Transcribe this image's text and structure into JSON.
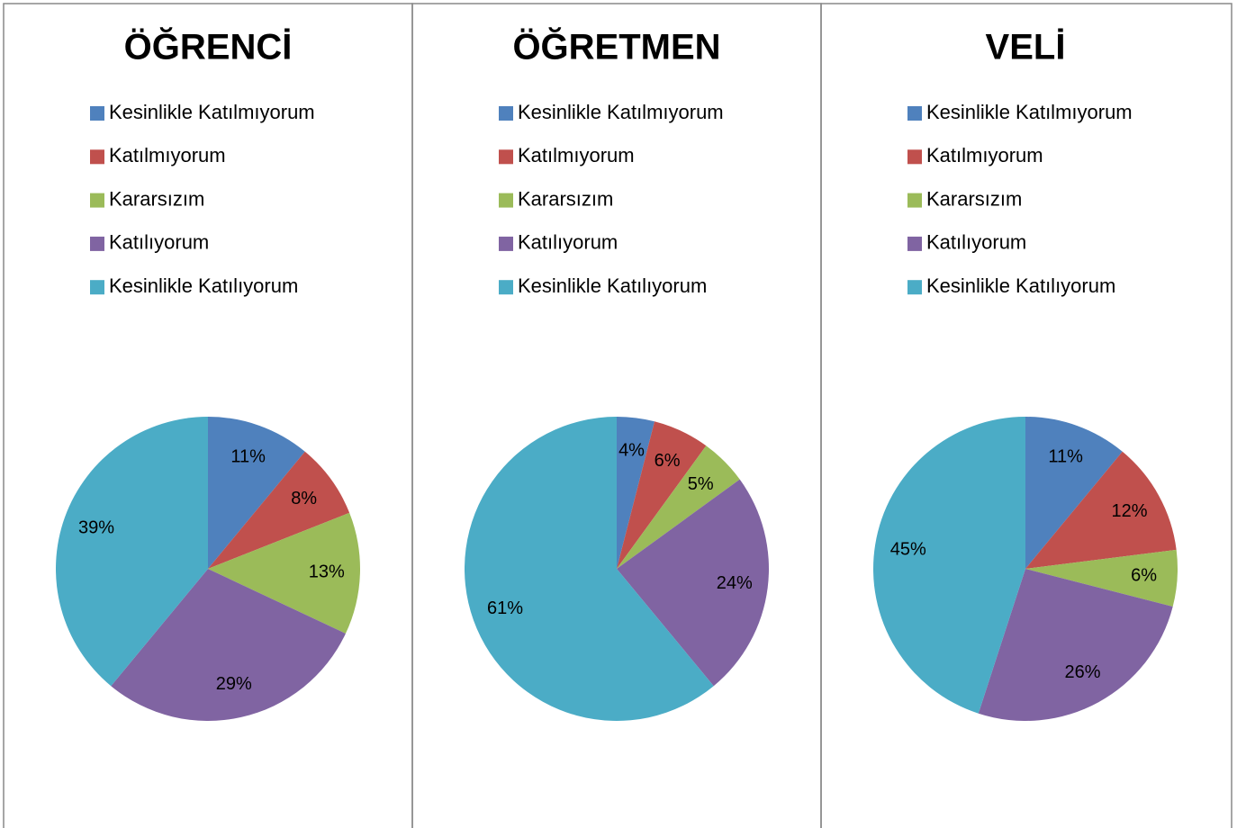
{
  "chart_data": [
    {
      "type": "pie",
      "title": "ÖĞRENCİ",
      "categories": [
        "Kesinlikle Katılmıyorum",
        "Katılmıyorum",
        "Kararsızım",
        "Katılıyorum",
        "Kesinlikle Katılıyorum"
      ],
      "values": [
        11,
        8,
        13,
        29,
        39
      ],
      "value_labels": [
        "11%",
        "8%",
        "13%",
        "29%",
        "39%"
      ],
      "colors": [
        "#4f81bd",
        "#c0504d",
        "#9bbb59",
        "#8064a2",
        "#4bacc6"
      ]
    },
    {
      "type": "pie",
      "title": "ÖĞRETMEN",
      "categories": [
        "Kesinlikle Katılmıyorum",
        "Katılmıyorum",
        "Kararsızım",
        "Katılıyorum",
        "Kesinlikle Katılıyorum"
      ],
      "values": [
        4,
        6,
        5,
        24,
        61
      ],
      "value_labels": [
        "4%",
        "6%",
        "5%",
        "24%",
        "61%"
      ],
      "colors": [
        "#4f81bd",
        "#c0504d",
        "#9bbb59",
        "#8064a2",
        "#4bacc6"
      ]
    },
    {
      "type": "pie",
      "title": "VELİ",
      "categories": [
        "Kesinlikle Katılmıyorum",
        "Katılmıyorum",
        "Kararsızım",
        "Katılıyorum",
        "Kesinlikle Katılıyorum"
      ],
      "values": [
        11,
        12,
        6,
        26,
        45
      ],
      "value_labels": [
        "11%",
        "12%",
        "6%",
        "26%",
        "45%"
      ],
      "colors": [
        "#4f81bd",
        "#c0504d",
        "#9bbb59",
        "#8064a2",
        "#4bacc6"
      ]
    }
  ]
}
